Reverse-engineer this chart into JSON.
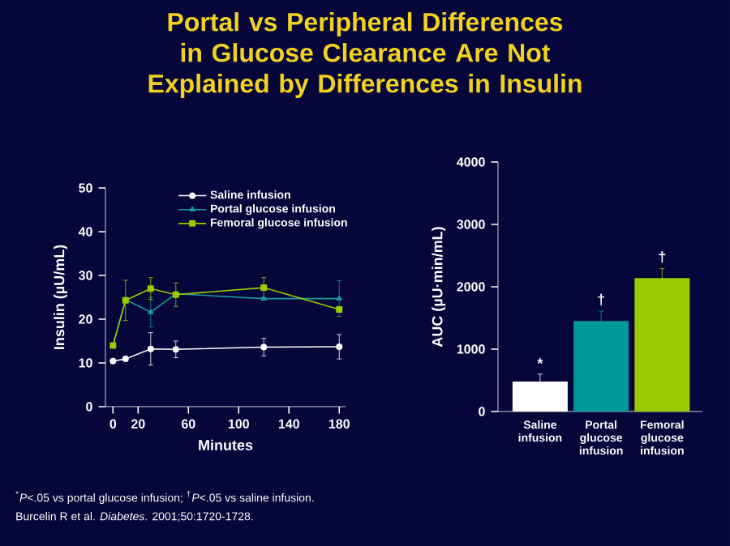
{
  "chart_data": [
    {
      "type": "line",
      "title": "Portal vs Peripheral Differences in Glucose Clearance Are Not Explained by Differences in Insulin",
      "xlabel": "Minutes",
      "ylabel": "Insulin (µU/mL)",
      "x": [
        0,
        10,
        30,
        50,
        120,
        180
      ],
      "series": [
        {
          "name": "Saline infusion",
          "color": "#ffffff",
          "marker": "circle",
          "values": [
            10.4,
            10.9,
            13.2,
            13.1,
            13.6,
            13.7
          ],
          "errors": [
            null,
            null,
            3.7,
            1.9,
            2,
            2.8
          ]
        },
        {
          "name": "Portal glucose infusion",
          "color": "#1a9a9a",
          "marker": "triangle",
          "values": [
            14,
            24.5,
            21.6,
            25.8,
            24.7,
            24.7
          ],
          "errors": [
            null,
            null,
            3.4,
            null,
            null,
            4.1
          ]
        },
        {
          "name": "Femoral glucose infusion",
          "color": "#99cc00",
          "marker": "square",
          "values": [
            14,
            24.3,
            27,
            25.6,
            27.2,
            22.2
          ],
          "errors": [
            null,
            4.6,
            2.5,
            2.7,
            2.3,
            null
          ]
        }
      ],
      "xlim": [
        -6,
        185
      ],
      "xticks": [
        0,
        20,
        60,
        100,
        140,
        180
      ],
      "ylim": [
        0,
        50
      ],
      "yticks": [
        0,
        10,
        20,
        30,
        40,
        50
      ],
      "legend": "top",
      "annotations": [
        "$^{*}$*P*<.05 vs portal glucose infusion; $^{†}$*P*<.05 vs saline infusion.",
        "Burcelin R et al. *Diabetes*. 2001;50:1720-1728."
      ]
    },
    {
      "type": "bar",
      "ylabel": "AUC (µU·min/mL)",
      "categories": [
        "Saline infusion",
        "Portal glucose infusion",
        "Femoral glucose infusion"
      ],
      "values": [
        480,
        1450,
        2140
      ],
      "errors": [
        120,
        160,
        150
      ],
      "colors": [
        "#ffffff",
        "#009999",
        "#99cc00"
      ],
      "ylim": [
        0,
        4000
      ],
      "yticks": [
        0,
        1000,
        2000,
        3000,
        4000
      ],
      "annotations": [
        "*",
        "†",
        "†"
      ]
    }
  ]
}
